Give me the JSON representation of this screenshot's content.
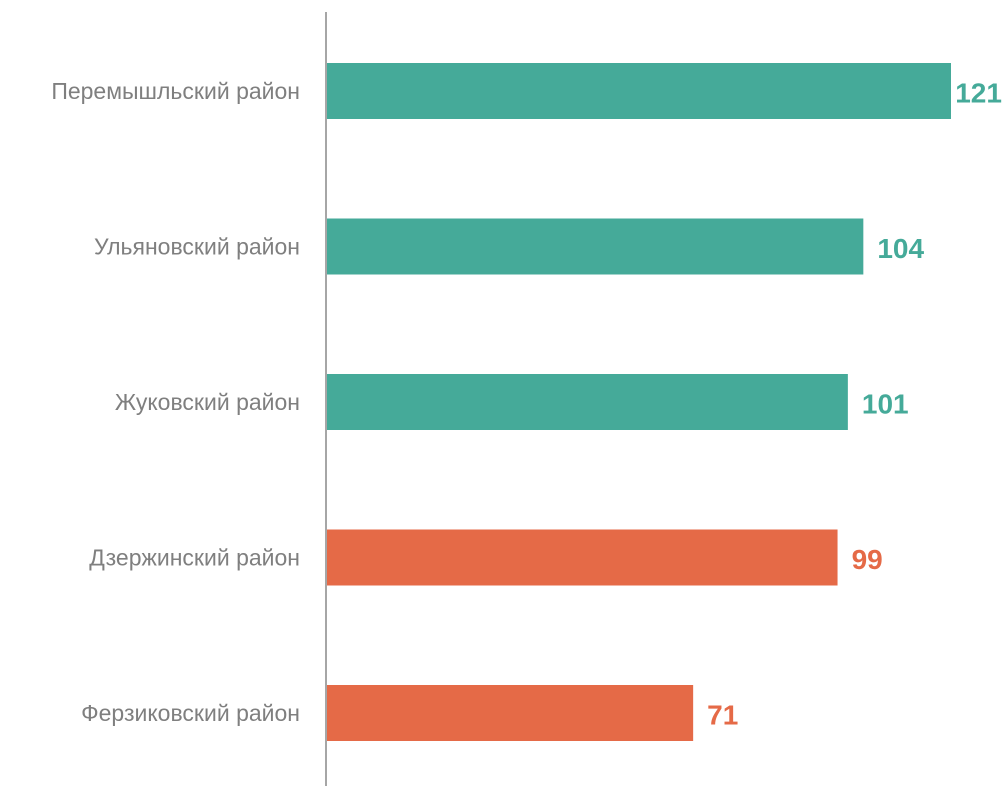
{
  "chart_data": {
    "type": "bar",
    "orientation": "horizontal",
    "categories": [
      "Перемышльский район",
      "Ульяновский район",
      "Жуковский район",
      "Дзержинский район",
      "Ферзиковский район"
    ],
    "values": [
      121,
      104,
      101,
      99,
      71
    ],
    "value_labels": [
      "121",
      "104",
      "101",
      "99",
      "71"
    ],
    "colors": [
      "#45aa99",
      "#45aa99",
      "#45aa99",
      "#e56a47",
      "#e56a47"
    ],
    "xlim": [
      0,
      121
    ],
    "grid": false,
    "legend": "none"
  }
}
